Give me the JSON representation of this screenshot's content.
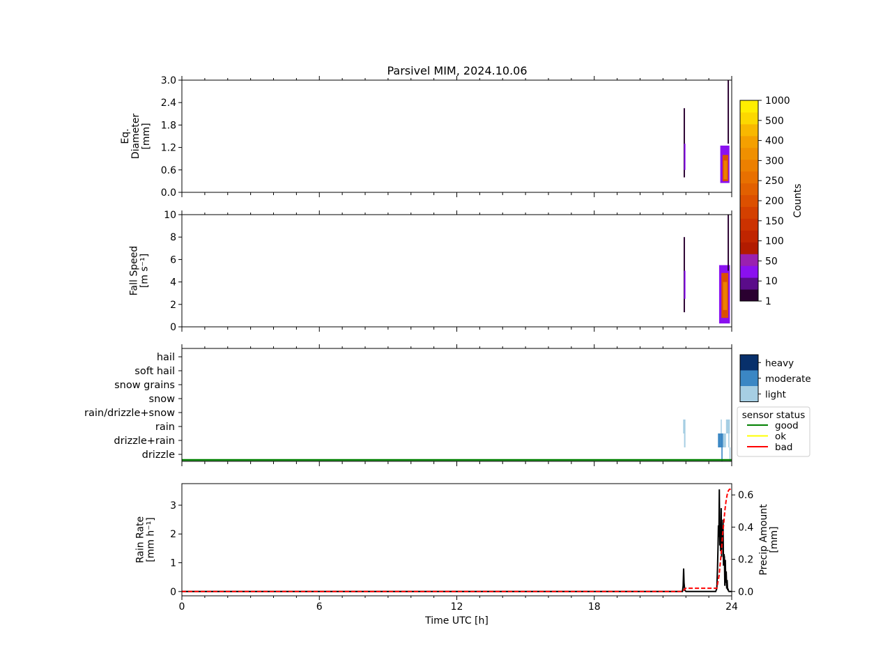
{
  "title": "Parsivel MIM, 2024.10.06",
  "chart_data": [
    {
      "type": "heatmap",
      "panel": "diameter",
      "ylabel": [
        "Eq.",
        "Diameter",
        "[mm]"
      ],
      "ylim": [
        0,
        3.0
      ],
      "yticks": [
        "0.0",
        "0.6",
        "1.2",
        "1.8",
        "2.4",
        "3.0"
      ],
      "xlim": [
        0,
        24
      ],
      "columns": [
        {
          "t0": 21.9,
          "t1": 21.96,
          "y0": 0.4,
          "y1": 2.25,
          "level": 0
        },
        {
          "t0": 21.92,
          "t1": 21.98,
          "y0": 0.6,
          "y1": 1.3,
          "level": 2
        },
        {
          "t0": 23.5,
          "t1": 23.9,
          "y0": 0.25,
          "y1": 1.25,
          "level": 2
        },
        {
          "t0": 23.6,
          "t1": 23.85,
          "y0": 0.3,
          "y1": 1.0,
          "level": 8
        },
        {
          "t0": 23.65,
          "t1": 23.8,
          "y0": 0.35,
          "y1": 0.85,
          "level": 11
        },
        {
          "t0": 23.82,
          "t1": 23.88,
          "y0": 1.3,
          "y1": 3.0,
          "level": 0
        }
      ]
    },
    {
      "type": "heatmap",
      "panel": "fall_speed",
      "ylabel": [
        "Fall Speed",
        "[m s⁻¹]"
      ],
      "ylim": [
        0,
        10
      ],
      "yticks": [
        "0",
        "2",
        "4",
        "6",
        "8",
        "10"
      ],
      "xlim": [
        0,
        24
      ],
      "columns": [
        {
          "t0": 21.9,
          "t1": 21.96,
          "y0": 1.3,
          "y1": 8.0,
          "level": 0
        },
        {
          "t0": 21.92,
          "t1": 21.98,
          "y0": 2.5,
          "y1": 5.0,
          "level": 2
        },
        {
          "t0": 23.45,
          "t1": 23.92,
          "y0": 0.3,
          "y1": 5.5,
          "level": 2
        },
        {
          "t0": 23.55,
          "t1": 23.85,
          "y0": 0.8,
          "y1": 4.8,
          "level": 8
        },
        {
          "t0": 23.62,
          "t1": 23.8,
          "y0": 1.5,
          "y1": 4.0,
          "level": 11
        },
        {
          "t0": 23.82,
          "t1": 23.88,
          "y0": 5.0,
          "y1": 10.0,
          "level": 0
        }
      ]
    },
    {
      "type": "heatmap",
      "panel": "precip_type",
      "categories": [
        "drizzle",
        "drizzle+rain",
        "rain",
        "rain/drizzle+snow",
        "snow",
        "snow grains",
        "soft hail",
        "hail"
      ],
      "xlim": [
        0,
        24
      ],
      "cells": [
        {
          "t0": 21.88,
          "t1": 21.98,
          "cat": 2,
          "intensity": "light"
        },
        {
          "t0": 21.92,
          "t1": 21.98,
          "cat": 1,
          "intensity": "light"
        },
        {
          "t0": 23.4,
          "t1": 23.5,
          "cat": 1,
          "intensity": "moderate"
        },
        {
          "t0": 23.5,
          "t1": 23.62,
          "cat": 1,
          "intensity": "moderate"
        },
        {
          "t0": 23.62,
          "t1": 23.75,
          "cat": 1,
          "intensity": "light"
        },
        {
          "t0": 23.52,
          "t1": 23.56,
          "cat": 2,
          "intensity": "light"
        },
        {
          "t0": 23.55,
          "t1": 23.6,
          "cat": 0,
          "intensity": "moderate"
        },
        {
          "t0": 23.75,
          "t1": 23.92,
          "cat": 2,
          "intensity": "light"
        },
        {
          "t0": 23.85,
          "t1": 23.9,
          "cat": 1,
          "intensity": "light"
        },
        {
          "t0": 23.9,
          "t1": 23.93,
          "cat": 0,
          "intensity": "light"
        }
      ],
      "status_line": {
        "level": "good"
      },
      "intensity_legend": [
        "heavy",
        "moderate",
        "light"
      ],
      "status_legend": {
        "title": "sensor status",
        "items": [
          {
            "label": "good",
            "color": "#008000"
          },
          {
            "label": "ok",
            "color": "#ffff00"
          },
          {
            "label": "bad",
            "color": "#ff0000"
          }
        ]
      }
    },
    {
      "type": "line",
      "panel": "rain",
      "ylabel": [
        "Rain Rate",
        "[mm h⁻¹]"
      ],
      "y2label": [
        "Precip Amount",
        "[mm]"
      ],
      "xlabel": "Time UTC [h]",
      "xlim": [
        0,
        24
      ],
      "xticks": [
        "0",
        "6",
        "12",
        "18",
        "24"
      ],
      "ylim": [
        -0.15,
        3.75
      ],
      "yticks": [
        "0",
        "1",
        "2",
        "3"
      ],
      "y2lim": [
        -0.027,
        0.67
      ],
      "y2ticks": [
        "0.0",
        "0.2",
        "0.4",
        "0.6"
      ],
      "series": [
        {
          "axis": "left",
          "color": "#000000",
          "style": "solid",
          "x": [
            0,
            21.85,
            21.88,
            21.9,
            21.92,
            21.95,
            22.0,
            23.3,
            23.35,
            23.38,
            23.4,
            23.42,
            23.44,
            23.46,
            23.48,
            23.5,
            23.52,
            23.54,
            23.56,
            23.58,
            23.6,
            23.62,
            23.64,
            23.66,
            23.68,
            23.7,
            23.72,
            23.74,
            23.76,
            23.78,
            23.8,
            23.82,
            23.84,
            23.86,
            23.88,
            24.0
          ],
          "y": [
            0,
            0,
            0.2,
            0.8,
            0.3,
            0.05,
            0,
            0,
            0.1,
            0.8,
            1.5,
            2.3,
            1.9,
            3.55,
            1.6,
            2.1,
            1.4,
            2.9,
            1.2,
            2.2,
            1.8,
            2.5,
            0.9,
            1.3,
            1.2,
            0.2,
            1.1,
            0.3,
            0.7,
            0.1,
            0.4,
            0.05,
            0.1,
            0.02,
            0,
            0
          ]
        },
        {
          "axis": "right",
          "color": "#ff0000",
          "style": "dashed",
          "x": [
            0,
            21.85,
            21.95,
            22.0,
            23.35,
            23.45,
            23.55,
            23.6,
            23.65,
            23.7,
            23.75,
            23.8,
            23.85,
            23.9,
            24.0
          ],
          "y": [
            0,
            0,
            0.015,
            0.02,
            0.02,
            0.1,
            0.25,
            0.35,
            0.42,
            0.5,
            0.56,
            0.6,
            0.625,
            0.635,
            0.635
          ]
        }
      ]
    }
  ],
  "colorbar": {
    "label": "Counts",
    "ticks": [
      "1",
      "10",
      "50",
      "100",
      "150",
      "200",
      "250",
      "300",
      "400",
      "500",
      "1000"
    ],
    "colors": [
      "#2a0030",
      "#5a0c8a",
      "#8a10f0",
      "#9a20b0",
      "#b21b00",
      "#c02500",
      "#cc3200",
      "#d44000",
      "#dc5000",
      "#e26000",
      "#e87000",
      "#ec8000",
      "#f09000",
      "#f4a000",
      "#f8b800",
      "#fcd800",
      "#ffee00"
    ]
  }
}
